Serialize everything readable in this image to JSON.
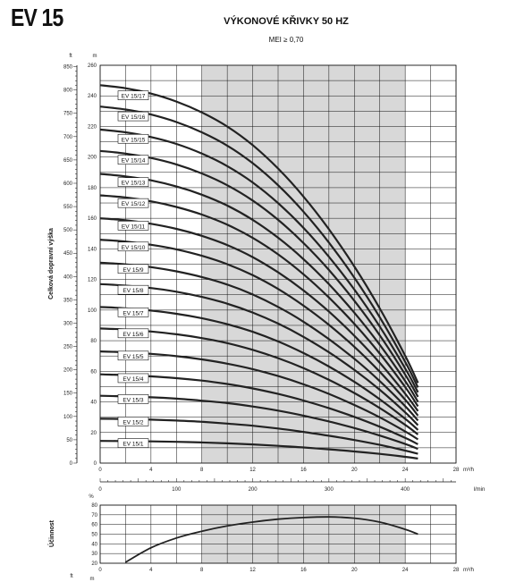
{
  "header": {
    "model": "EV 15",
    "title": "VÝKONOVÉ KŘIVKY 50 HZ",
    "subtitle": "MEI ≥ 0,70"
  },
  "colors": {
    "curve": "#222222",
    "band": "#d8d8d8",
    "grid": "#111111"
  },
  "chart_data": [
    {
      "type": "line",
      "title": "VÝKONOVÉ KŘIVKY 50 HZ",
      "subtitle": "MEI ≥ 0,70",
      "ylabel": "Celková dopravní výška",
      "y_unit": "m",
      "y2_unit": "ft",
      "x_unit": "m³/h",
      "x2_unit": "l/min",
      "xlim": [
        0,
        28
      ],
      "ylim": [
        0,
        260
      ],
      "y2lim": [
        0,
        850
      ],
      "x_ticks": [
        0,
        4,
        8,
        12,
        16,
        20,
        24,
        28
      ],
      "y_ticks": [
        0,
        20,
        40,
        60,
        80,
        100,
        120,
        140,
        160,
        180,
        200,
        220,
        240,
        260
      ],
      "y2_ticks": [
        0,
        50,
        100,
        150,
        200,
        250,
        300,
        350,
        400,
        450,
        500,
        550,
        600,
        650,
        700,
        750,
        800,
        850
      ],
      "x2_ticks": [
        0,
        100,
        200,
        300,
        400
      ],
      "shaded_band": [
        8,
        24
      ],
      "grid": true,
      "x": [
        0,
        2,
        4,
        6,
        8,
        10,
        12,
        14,
        16,
        18,
        20,
        22,
        24,
        25
      ],
      "series": [
        {
          "name": "EV 15/1",
          "values": [
            14.5,
            14.4,
            14.2,
            13.9,
            13.5,
            12.9,
            12.2,
            11.3,
            10.2,
            9.0,
            7.6,
            6.0,
            4.1,
            3.0
          ]
        },
        {
          "name": "EV 15/2",
          "values": [
            29,
            28.8,
            28.4,
            27.8,
            27.0,
            25.8,
            24.4,
            22.6,
            20.4,
            17.9,
            15.1,
            11.9,
            8.2,
            6.1
          ]
        },
        {
          "name": "EV 15/3",
          "values": [
            44,
            43.6,
            43.0,
            42.1,
            40.8,
            39.2,
            37.0,
            34.3,
            31.0,
            27.2,
            22.9,
            18.0,
            12.5,
            9.3
          ]
        },
        {
          "name": "EV 15/4",
          "values": [
            58,
            57.5,
            56.7,
            55.5,
            53.9,
            51.7,
            48.8,
            45.2,
            40.9,
            35.9,
            30.2,
            23.8,
            16.5,
            12.3
          ]
        },
        {
          "name": "EV 15/5",
          "values": [
            73,
            72.4,
            71.4,
            69.9,
            67.8,
            65.0,
            61.4,
            56.9,
            51.5,
            45.2,
            38.0,
            29.9,
            20.7,
            15.5
          ]
        },
        {
          "name": "EV 15/6",
          "values": [
            88,
            87.3,
            86.0,
            84.2,
            81.7,
            78.4,
            74.0,
            68.6,
            62.1,
            54.4,
            45.8,
            36.0,
            25.0,
            18.7
          ]
        },
        {
          "name": "EV 15/7",
          "values": [
            102,
            101.2,
            99.7,
            97.6,
            94.7,
            90.8,
            85.8,
            79.5,
            71.9,
            63.1,
            53.1,
            41.7,
            29.0,
            21.7
          ]
        },
        {
          "name": "EV 15/8",
          "values": [
            117,
            116.0,
            114.4,
            112.0,
            108.6,
            104.2,
            98.4,
            91.2,
            82.5,
            72.4,
            60.9,
            47.9,
            33.2,
            24.8
          ]
        },
        {
          "name": "EV 15/9",
          "values": [
            131,
            129.9,
            128.1,
            125.3,
            121.6,
            116.7,
            110.2,
            102.1,
            92.4,
            81.0,
            68.2,
            53.6,
            37.2,
            27.8
          ]
        },
        {
          "name": "EV 15/10",
          "values": [
            146,
            144.8,
            142.7,
            139.7,
            135.5,
            130.0,
            122.8,
            113.8,
            102.9,
            90.3,
            76.0,
            59.7,
            41.5,
            31.0
          ]
        },
        {
          "name": "EV 15/11",
          "values": [
            160,
            158.7,
            156.4,
            153.1,
            148.5,
            142.5,
            134.6,
            124.7,
            112.8,
            99.0,
            83.2,
            65.5,
            45.4,
            34.0
          ]
        },
        {
          "name": "EV 15/12",
          "values": [
            175,
            173.6,
            171.1,
            167.4,
            162.4,
            155.8,
            147.2,
            136.4,
            123.4,
            108.2,
            91.0,
            71.6,
            49.7,
            37.1
          ]
        },
        {
          "name": "EV 15/13",
          "values": [
            189,
            187.4,
            184.8,
            180.8,
            175.4,
            168.3,
            159.0,
            147.3,
            133.3,
            116.9,
            98.3,
            77.3,
            53.7,
            40.1
          ]
        },
        {
          "name": "EV 15/14",
          "values": [
            204,
            202.3,
            199.4,
            195.2,
            189.3,
            181.6,
            171.6,
            159.0,
            143.8,
            126.2,
            106.1,
            83.5,
            57.9,
            43.3
          ]
        },
        {
          "name": "EV 15/15",
          "values": [
            218,
            216.2,
            213.1,
            208.6,
            202.3,
            194.1,
            183.4,
            169.9,
            153.7,
            134.8,
            113.4,
            89.2,
            61.9,
            46.3
          ]
        },
        {
          "name": "EV 15/16",
          "values": [
            233,
            231.1,
            227.8,
            222.9,
            216.2,
            207.5,
            196.0,
            181.6,
            164.3,
            144.1,
            121.2,
            95.3,
            66.2,
            49.4
          ]
        },
        {
          "name": "EV 15/17",
          "values": [
            247,
            245.0,
            241.5,
            236.3,
            229.2,
            220.0,
            207.8,
            192.5,
            174.2,
            152.8,
            128.5,
            101.1,
            70.2,
            52.4
          ]
        }
      ]
    },
    {
      "type": "line",
      "ylabel": "Účinnost",
      "y_unit": "%",
      "x_unit": "m³/h",
      "xlim": [
        0,
        28
      ],
      "ylim": [
        20,
        80
      ],
      "x_ticks": [
        0,
        4,
        8,
        12,
        16,
        20,
        24,
        28
      ],
      "y_ticks": [
        20,
        30,
        40,
        50,
        60,
        70,
        80
      ],
      "shaded_band": [
        8,
        24
      ],
      "grid": true,
      "x": [
        2,
        4,
        6,
        8,
        10,
        12,
        14,
        16,
        18,
        20,
        22,
        24,
        25
      ],
      "values": [
        21,
        36,
        46,
        53,
        58.5,
        62.5,
        65.5,
        67.2,
        67.8,
        66.5,
        62.5,
        55,
        50
      ]
    }
  ],
  "bottom_axis": {
    "left_unit_top": "ft",
    "left_unit_bottom": "m"
  }
}
